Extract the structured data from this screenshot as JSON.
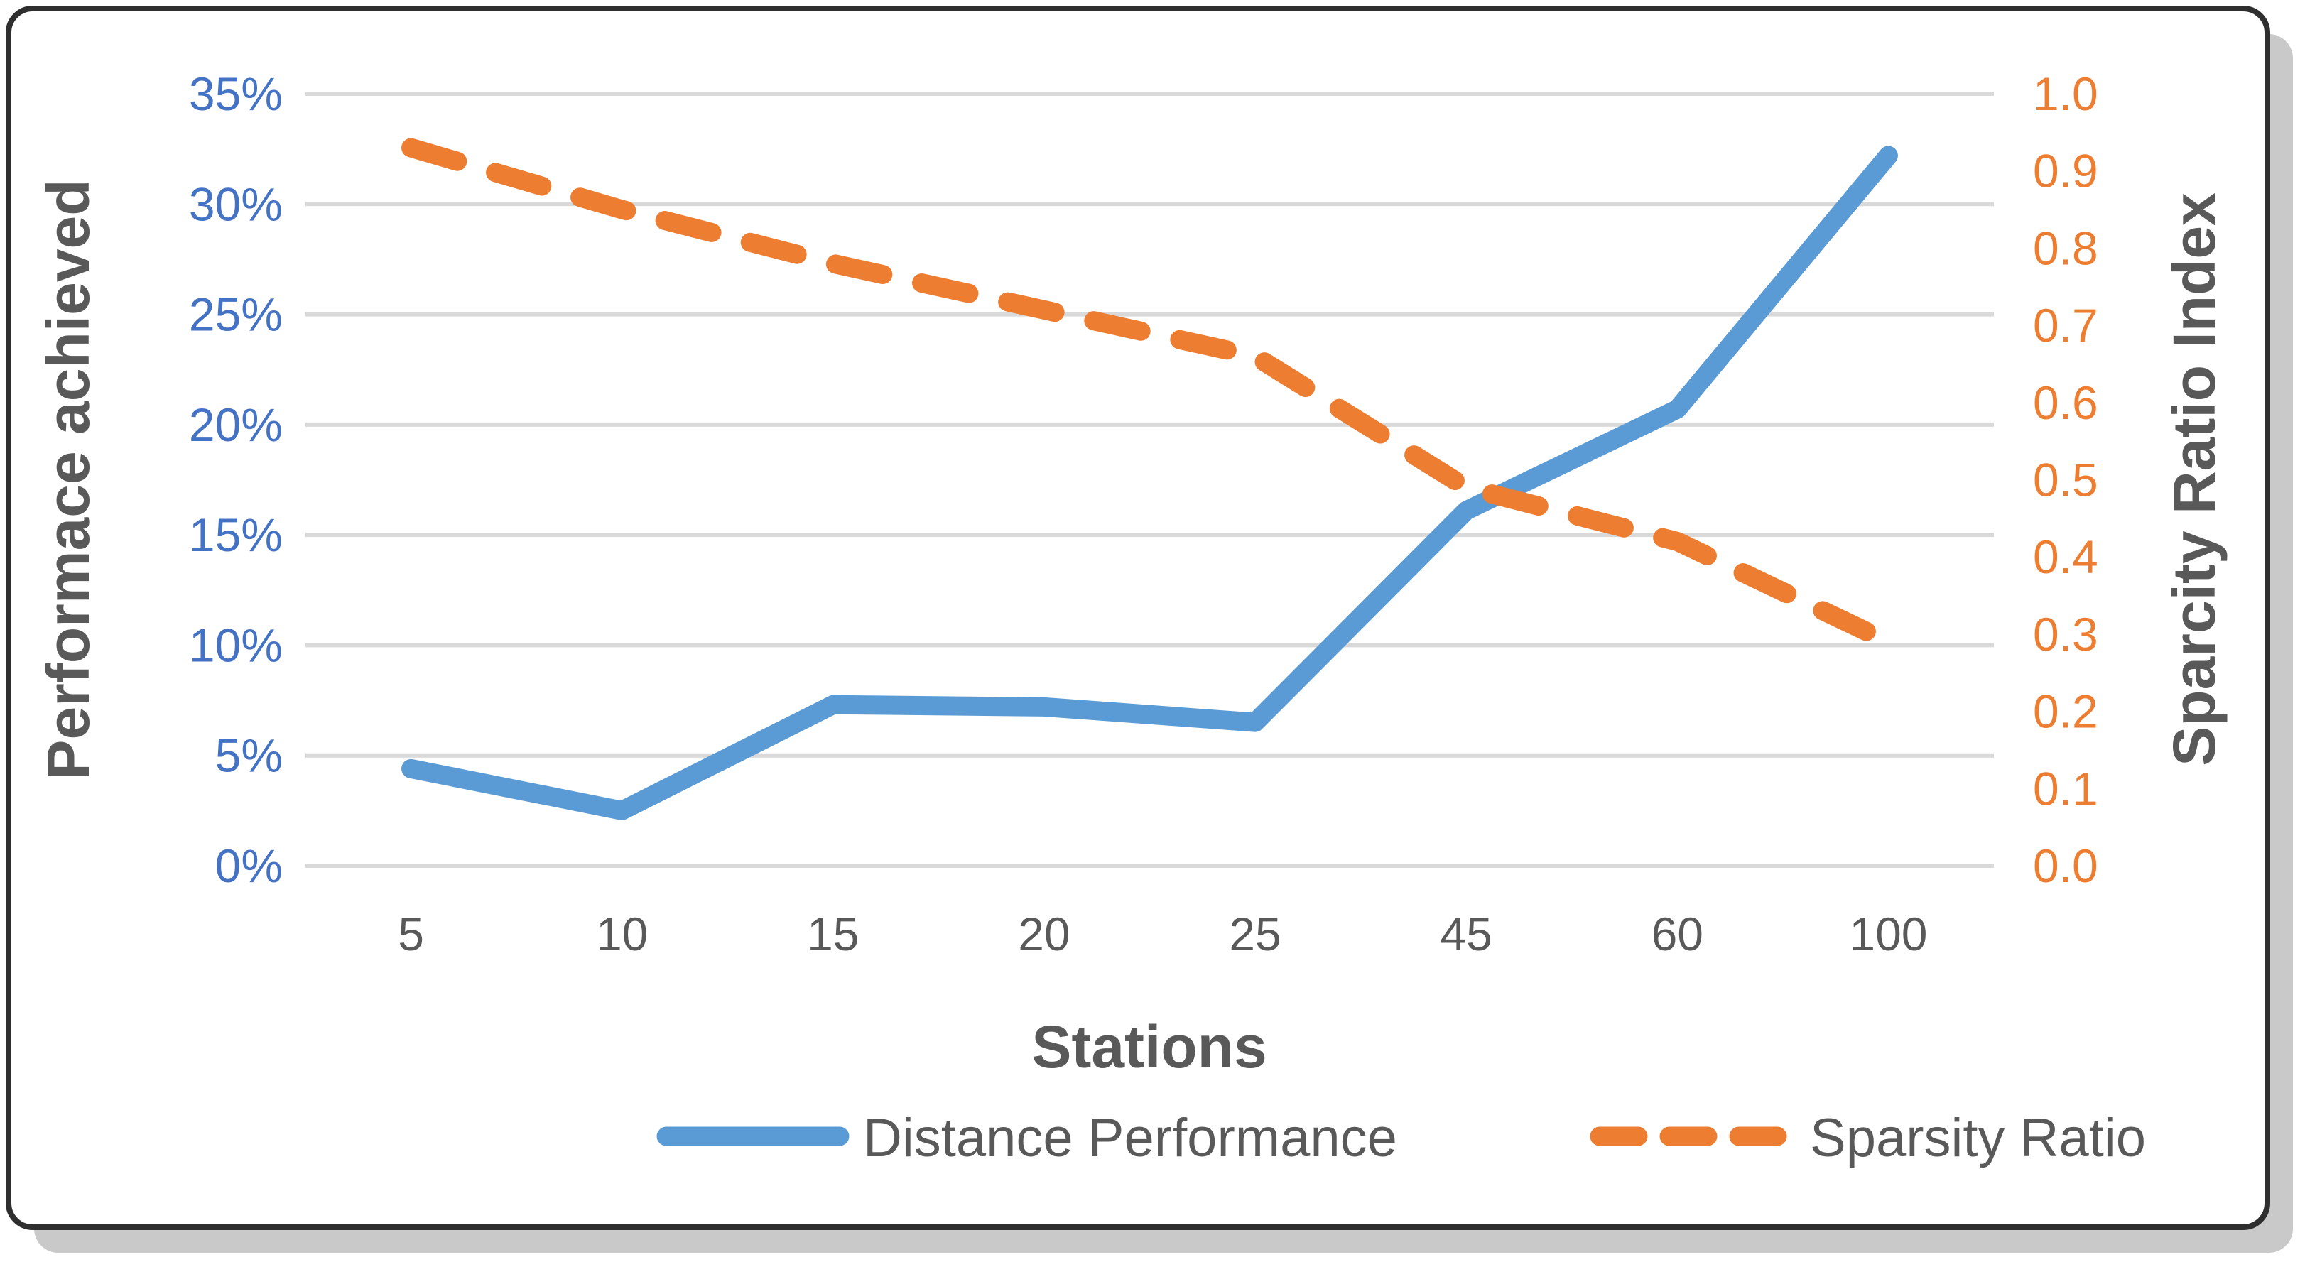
{
  "chart_data": {
    "type": "line",
    "title": "",
    "xlabel": "Stations",
    "categories": [
      "5",
      "10",
      "15",
      "20",
      "25",
      "45",
      "60",
      "100"
    ],
    "axes": {
      "left": {
        "title": "Performace achieved",
        "min": 0,
        "max": 35,
        "tick_labels": [
          "0%",
          "5%",
          "10%",
          "15%",
          "20%",
          "25%",
          "30%",
          "35%"
        ],
        "tick_color": "#4472C4"
      },
      "right": {
        "title": "Sparcity Ratio Index",
        "min": 0,
        "max": 1,
        "tick_labels": [
          "0.0",
          "0.1",
          "0.2",
          "0.3",
          "0.4",
          "0.5",
          "0.6",
          "0.7",
          "0.8",
          "0.9",
          "1.0"
        ],
        "tick_color": "#ED7D31"
      }
    },
    "series": [
      {
        "name": "Distance Performance",
        "axis": "left",
        "style": "solid",
        "color": "#5B9BD5",
        "values": [
          4.4,
          2.5,
          7.3,
          7.2,
          6.5,
          16.1,
          20.7,
          32.2
        ]
      },
      {
        "name": "Sparsity Ratio",
        "axis": "right",
        "style": "dashed",
        "color": "#ED7D31",
        "values": [
          0.93,
          0.85,
          0.78,
          0.72,
          0.66,
          0.49,
          0.42,
          0.29
        ]
      }
    ],
    "legend": {
      "position": "bottom"
    },
    "grid": "horizontal",
    "style": {
      "gridline_color": "#D9D9D9",
      "text_color": "#595959",
      "background": "#FFFFFF",
      "border_color": "#2F2F2F",
      "shadow_color": "#C9C9C9"
    }
  }
}
